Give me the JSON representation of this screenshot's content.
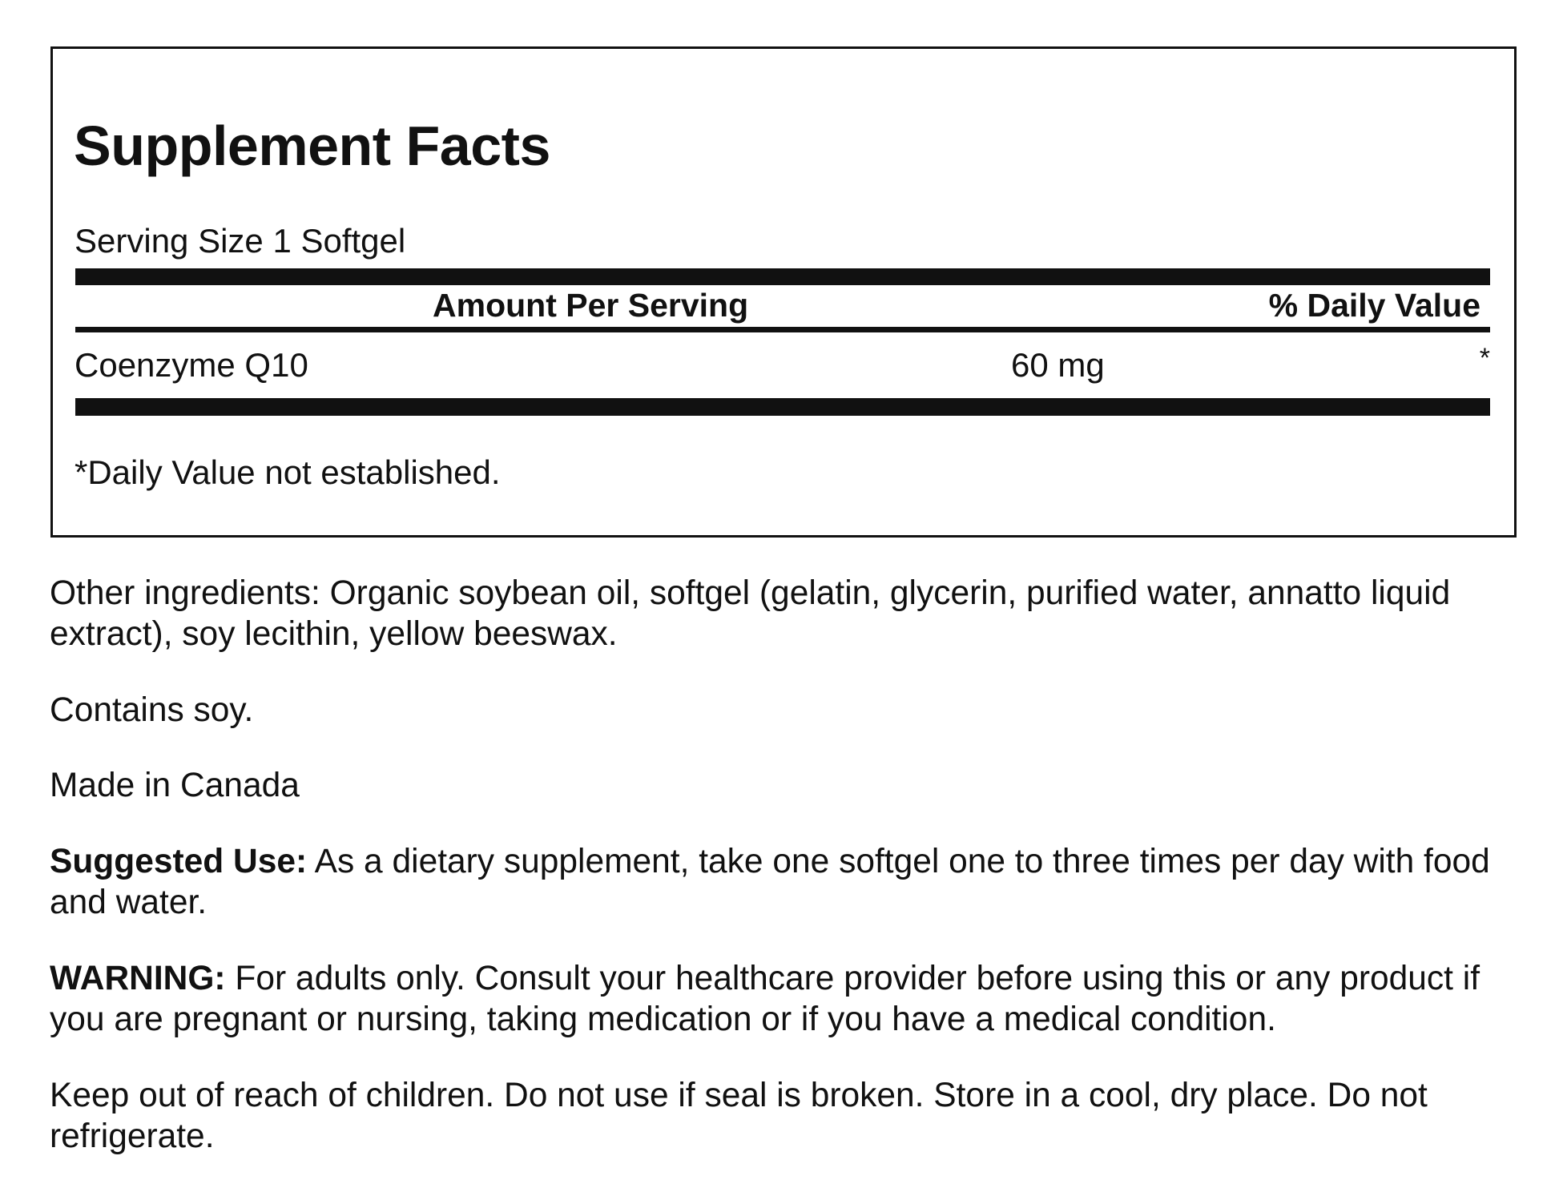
{
  "facts": {
    "title": "Supplement Facts",
    "serving_size": "Serving Size 1 Softgel",
    "header_amount": "Amount Per Serving",
    "header_dv": "% Daily Value",
    "rows": [
      {
        "name": "Coenzyme Q10",
        "amount": "60 mg",
        "dv": "*"
      }
    ],
    "footnote": "*Daily Value not established."
  },
  "text": {
    "other_ingredients": "Other ingredients: Organic soybean oil, softgel (gelatin, glycerin, purified water, annatto liquid extract), soy lecithin, yellow beeswax.",
    "contains": "Contains soy.",
    "origin": "Made in Canada",
    "suggested_label": "Suggested Use:",
    "suggested_text": " As a dietary supplement, take one softgel one to three times per day with food and water.",
    "warning_label": "WARNING:",
    "warning_text": " For adults only. Consult your healthcare provider before using this or any product if you are pregnant or nursing, taking medication or if you have a medical condition.",
    "storage": "Keep out of reach of children. Do not use if seal is broken. Store in a cool, dry place. Do not refrigerate."
  }
}
